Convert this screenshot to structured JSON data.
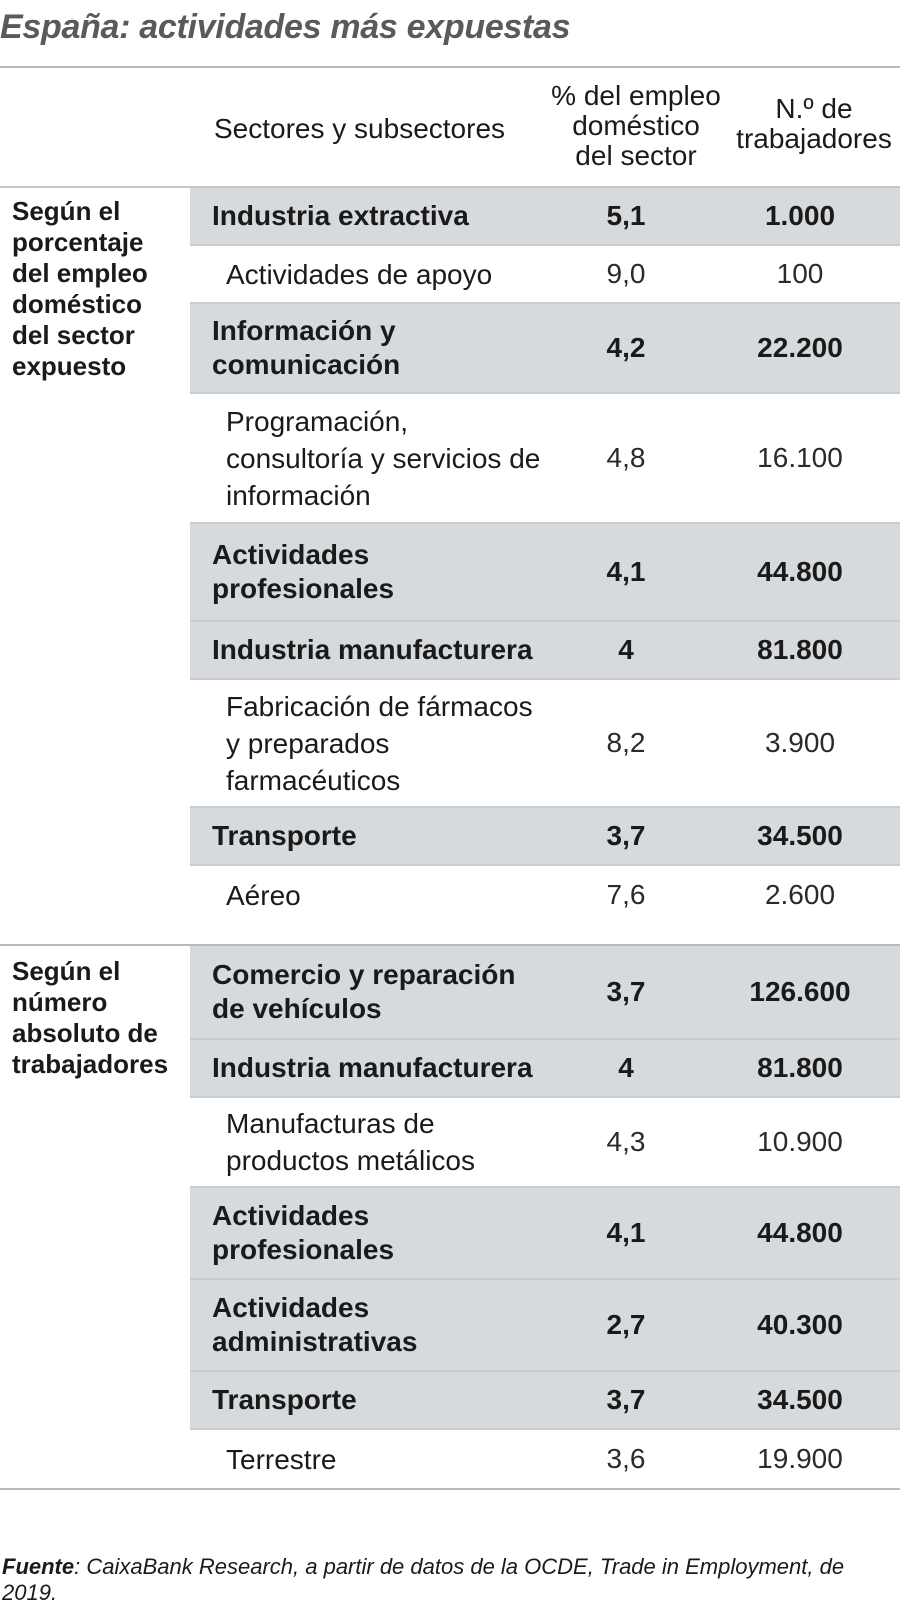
{
  "title": "España: actividades más expuestas",
  "header": {
    "sectors": "Sectores y subsectores",
    "pct_line1": "% del empleo",
    "pct_line2": "doméstico",
    "pct_line3": "del sector",
    "num_line1": "N.º de",
    "num_line2": "trabajadores"
  },
  "groups": [
    {
      "label_lines": [
        "Según el",
        "porcentaje",
        "del empleo",
        "doméstico",
        "del sector",
        "expuesto"
      ],
      "rows": [
        {
          "type": "main",
          "name": "Industria extractiva",
          "pct": "5,1",
          "num": "1.000"
        },
        {
          "type": "sub",
          "name": "Actividades de apoyo",
          "pct": "9,0",
          "num": "100"
        },
        {
          "type": "main",
          "name": "Información y comunicación",
          "pct": "4,2",
          "num": "22.200"
        },
        {
          "type": "sub",
          "name": "Programación, consultoría y servicios de información",
          "pct": "4,8",
          "num": "16.100"
        },
        {
          "type": "main",
          "name": "Actividades profesionales",
          "pct": "4,1",
          "num": "44.800"
        },
        {
          "type": "main",
          "name": "Industria manufacturera",
          "pct": "4",
          "num": "81.800"
        },
        {
          "type": "sub",
          "name": "Fabricación de fármacos y preparados farmacéuticos",
          "pct": "8,2",
          "num": "3.900"
        },
        {
          "type": "main",
          "name": "Transporte",
          "pct": "3,7",
          "num": "34.500"
        },
        {
          "type": "sub",
          "name": "Aéreo",
          "pct": "7,6",
          "num": "2.600"
        }
      ]
    },
    {
      "label_lines": [
        "Según el",
        "número",
        "absoluto de",
        "trabajadores"
      ],
      "rows": [
        {
          "type": "main",
          "name": "Comercio y reparación de vehículos",
          "pct": "3,7",
          "num": "126.600"
        },
        {
          "type": "main",
          "name": "Industria manufacturera",
          "pct": "4",
          "num": "81.800"
        },
        {
          "type": "sub",
          "name": "Manufacturas de productos metálicos",
          "pct": "4,3",
          "num": "10.900"
        },
        {
          "type": "main",
          "name": "Actividades profesionales",
          "pct": "4,1",
          "num": "44.800"
        },
        {
          "type": "main",
          "name": "Actividades administrativas",
          "pct": "2,7",
          "num": "40.300"
        },
        {
          "type": "main",
          "name": "Transporte",
          "pct": "3,7",
          "num": "34.500"
        },
        {
          "type": "sub",
          "name": "Terrestre",
          "pct": "3,6",
          "num": "19.900"
        }
      ]
    }
  ],
  "footnote": {
    "label": "Fuente",
    "text": ": CaixaBank Research, a partir de datos de la OCDE, Trade in Employment, de 2019."
  }
}
